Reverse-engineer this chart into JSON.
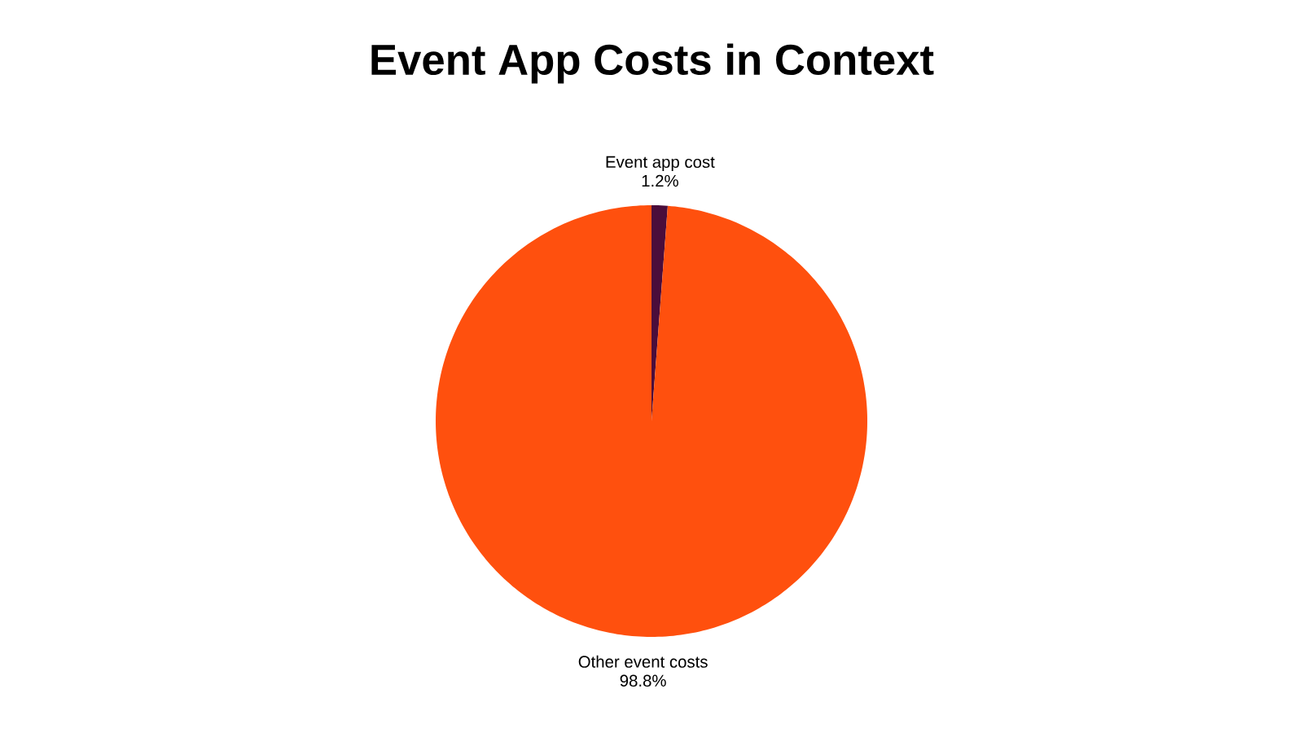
{
  "chart_data": {
    "type": "pie",
    "title": "Event App Costs in Context",
    "categories": [
      "Event app cost",
      "Other event costs"
    ],
    "values": [
      1.2,
      98.8
    ],
    "value_labels": [
      "1.2%",
      "98.8%"
    ],
    "colors": [
      "#4a0d3b",
      "#ff500e"
    ]
  }
}
